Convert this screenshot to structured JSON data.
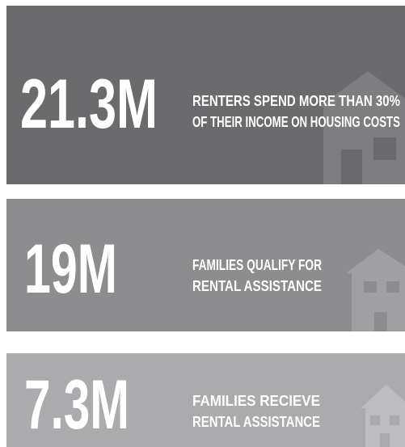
{
  "panels": [
    {
      "figure": "21.3M",
      "caption": [
        "RENTERS SPEND MORE THAN 30%",
        "OF THEIR INCOME ON HOUSING COSTS"
      ]
    },
    {
      "figure": "19M",
      "caption": [
        "FAMILIES QUALIFY FOR",
        "RENTAL ASSISTANCE"
      ]
    },
    {
      "figure": "7.3M",
      "caption": [
        "FAMILIES RECIEVE",
        "RENTAL ASSISTANCE"
      ]
    }
  ]
}
